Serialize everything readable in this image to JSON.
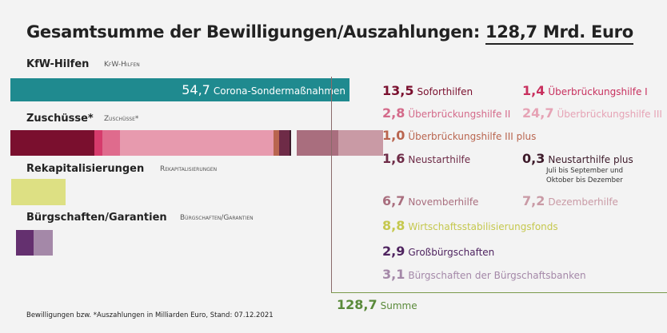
{
  "title": {
    "text": "Gesamtsumme der Bewilligungen/Auszahlungen:",
    "total": "128,7 Mrd. Euro"
  },
  "chart_data": {
    "type": "bar",
    "orientation": "horizontal-stacked",
    "unit": "Milliarden Euro",
    "categories": [
      "KfW-Hilfen",
      "Zuschüsse*",
      "Rekapitalisierungen",
      "Bürgschaften/Garantien"
    ],
    "bars": [
      {
        "category": "KfW-Hilfen",
        "segments": [
          {
            "name": "Corona-Sondermaßnahmen",
            "value": 54.7,
            "label": "54,7",
            "color": "#1f8a8f"
          }
        ]
      },
      {
        "category": "Zuschüsse*",
        "segments": [
          {
            "name": "Soforthilfen",
            "value": 13.5,
            "label": "13,5",
            "color": "#7a0f2e"
          },
          {
            "name": "Überbrückungshilfe I",
            "value": 1.4,
            "label": "1,4",
            "color": "#d63b6c"
          },
          {
            "name": "Überbrückungshilfe II",
            "value": 2.8,
            "label": "2,8",
            "color": "#df6b8d"
          },
          {
            "name": "Überbrückungshilfe III",
            "value": 24.7,
            "label": "24,7",
            "color": "#e79aae"
          },
          {
            "name": "Überbrückungshilfe III plus",
            "value": 1.0,
            "label": "1,0",
            "color": "#b9654f"
          },
          {
            "name": "Neustarthilfe",
            "value": 1.6,
            "label": "1,6",
            "color": "#6e2b47"
          },
          {
            "name": "Neustarthilfe plus",
            "value": 0.3,
            "label": "0,3",
            "color": "#3d1a2a",
            "note": [
              "Juli bis September und",
              "Oktober bis Dezember"
            ]
          },
          {
            "name": "Novemberhilfe",
            "value": 6.7,
            "label": "6,7",
            "color": "#a96e7e",
            "gap_before": true
          },
          {
            "name": "Dezemberhilfe",
            "value": 7.2,
            "label": "7,2",
            "color": "#c99aa5"
          }
        ]
      },
      {
        "category": "Rekapitalisierungen",
        "segments": [
          {
            "name": "Wirtschaftsstabilisierungsfonds",
            "value": 8.8,
            "label": "8,8",
            "color": "#dde083"
          }
        ]
      },
      {
        "category": "Bürgschaften/Garantien",
        "segments": [
          {
            "name": "Großbürgschaften",
            "value": 2.9,
            "label": "2,9",
            "color": "#64306f"
          },
          {
            "name": "Bürgschaften der Bürgschaftsbanken",
            "value": 3.1,
            "label": "3,1",
            "color": "#a488a8"
          }
        ]
      }
    ],
    "sum": {
      "name": "Summe",
      "value": 128.7,
      "label": "128,7",
      "color": "#5a8a3a"
    }
  },
  "text_colors": {
    "Soforthilfen": "#7a0f2e",
    "Überbrückungshilfe I": "#c8305e",
    "Überbrückungshilfe II": "#d46a8a",
    "Überbrückungshilfe III": "#e6a3b5",
    "Überbrückungshilfe III plus": "#b9654f",
    "Neustarthilfe": "#6e2b47",
    "Neustarthilfe plus": "#3d1a2a",
    "Novemberhilfe": "#a96e7e",
    "Dezemberhilfe": "#c99aa5",
    "Wirtschaftsstabilisierungsfonds": "#c5c84e",
    "Großbürgschaften": "#4f2460",
    "Bürgschaften der Bürgschaftsbanken": "#a488a8"
  },
  "footnote": "Bewilligungen bzw. *Auszahlungen in Milliarden Euro, Stand: 07.12.2021"
}
